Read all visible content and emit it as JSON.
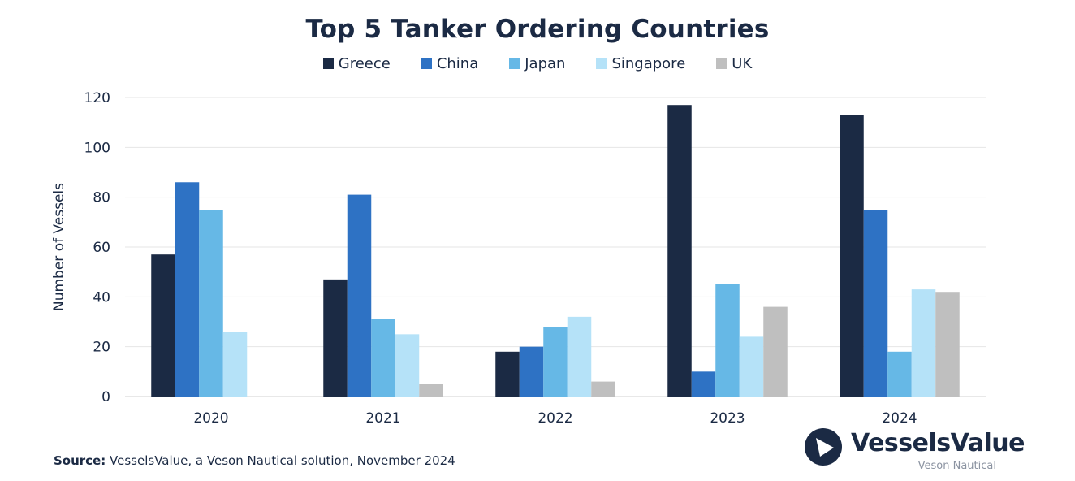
{
  "chart_data": {
    "type": "bar",
    "title": "Top 5 Tanker Ordering Countries",
    "xlabel": "",
    "ylabel": "Number of Vessels",
    "categories": [
      "2020",
      "2021",
      "2022",
      "2023",
      "2024"
    ],
    "ylim": [
      0,
      120
    ],
    "yticks": [
      0,
      20,
      40,
      60,
      80,
      100,
      120
    ],
    "grid": true,
    "legend_position": "top-center",
    "series": [
      {
        "name": "Greece",
        "color": "#1b2a44",
        "values": [
          57,
          47,
          18,
          117,
          113
        ]
      },
      {
        "name": "China",
        "color": "#2e72c4",
        "values": [
          86,
          81,
          20,
          10,
          75
        ]
      },
      {
        "name": "Japan",
        "color": "#66b8e6",
        "values": [
          75,
          31,
          28,
          45,
          18
        ]
      },
      {
        "name": "Singapore",
        "color": "#b5e2f8",
        "values": [
          26,
          25,
          32,
          24,
          43
        ]
      },
      {
        "name": "UK",
        "color": "#bfbfbf",
        "values": [
          0,
          5,
          6,
          36,
          42
        ]
      }
    ]
  },
  "source": {
    "label": "Source:",
    "text": "VesselsValue, a Veson Nautical solution, November 2024"
  },
  "logo": {
    "name": "VesselsValue",
    "subtitle": "Veson Nautical",
    "icon": "vesselsvalue-logo-mark"
  }
}
